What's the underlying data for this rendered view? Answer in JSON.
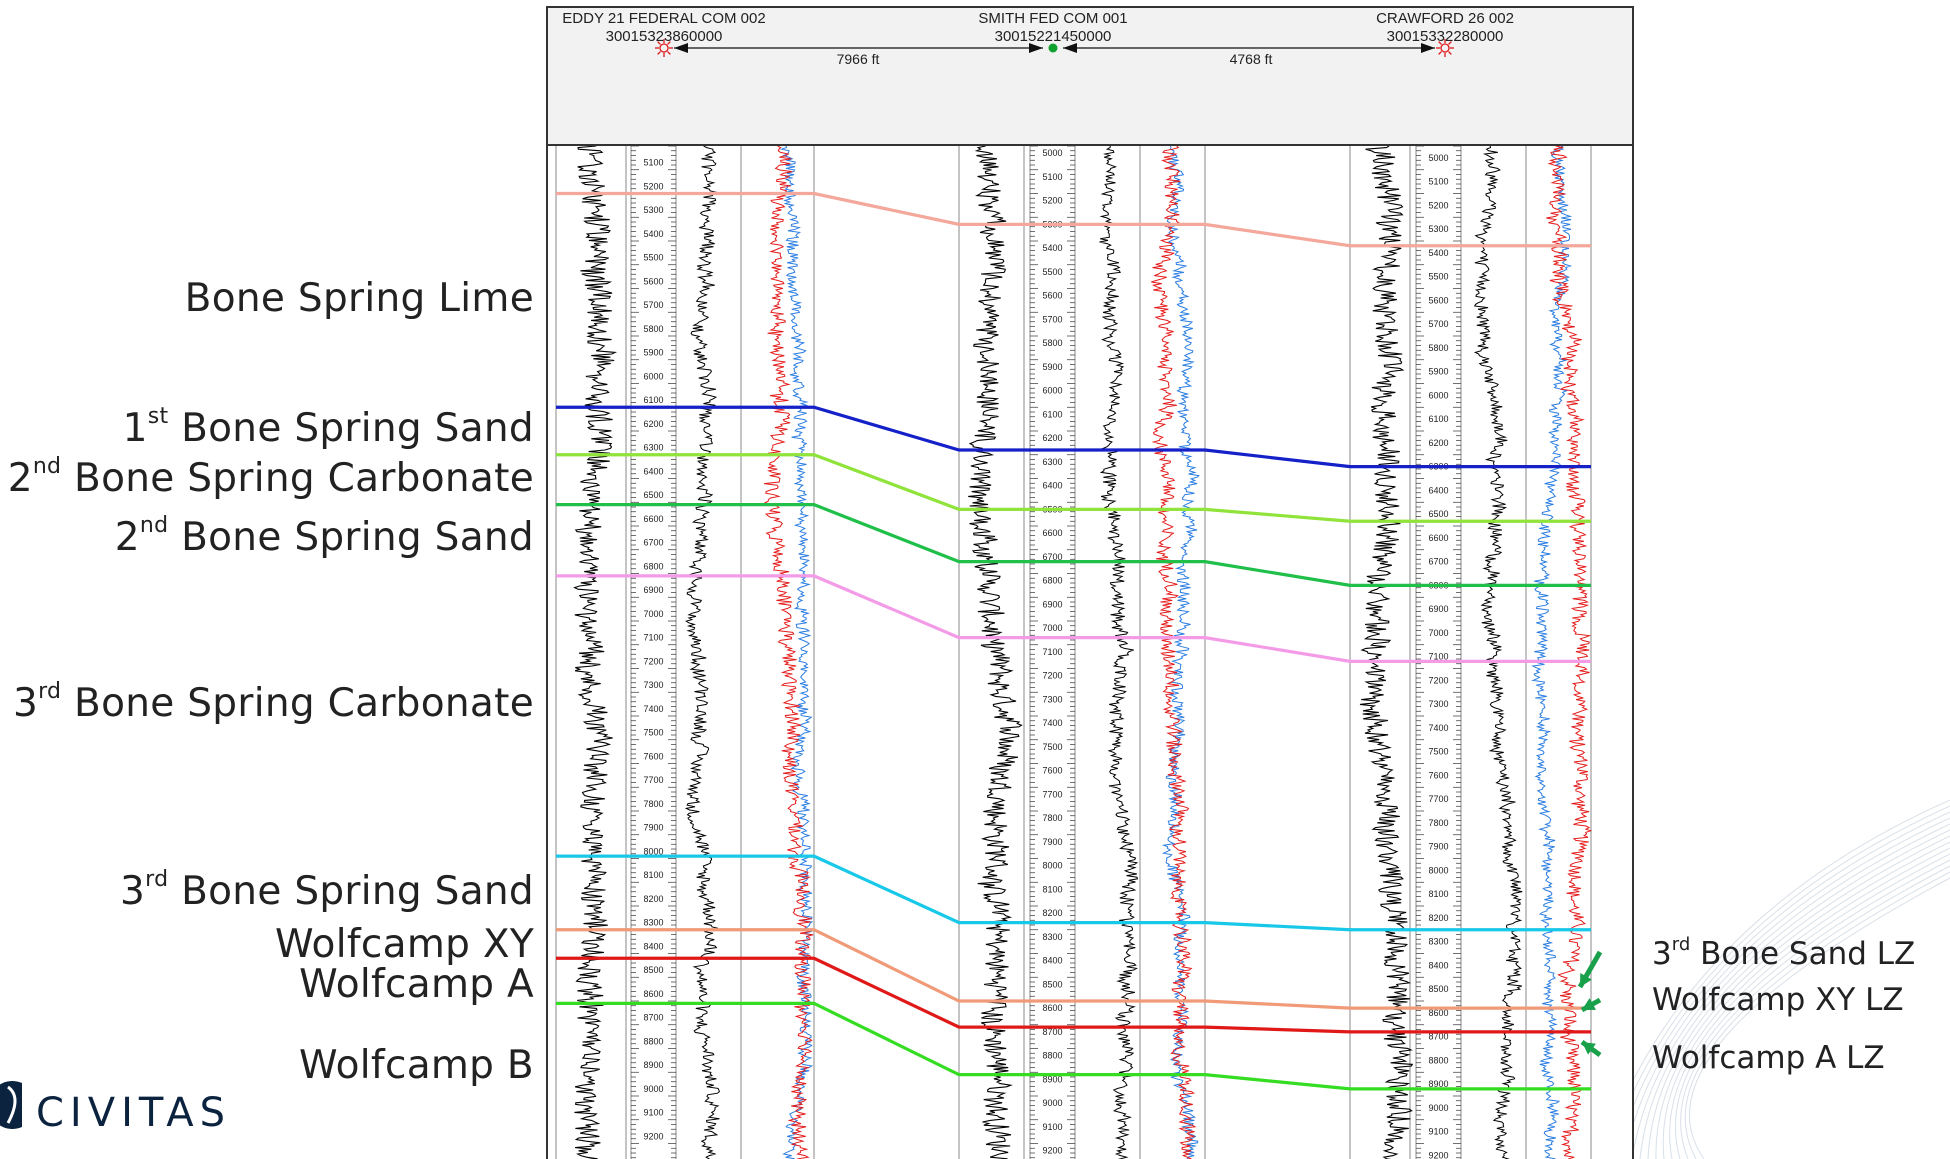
{
  "wells": [
    {
      "name": "EDDY 21 FEDERAL COM 002",
      "api": "30015323860000",
      "symbol": "red-sun-icon",
      "top_depth": 5030,
      "depths": [
        "5100",
        "5200",
        "5300",
        "5400",
        "5500",
        "5600",
        "5700",
        "5800",
        "5900",
        "6000",
        "6100",
        "6200",
        "6300",
        "6400",
        "6500",
        "6600",
        "6700",
        "6800",
        "6900",
        "7000",
        "7100",
        "7200",
        "7300",
        "7400",
        "7500",
        "7600",
        "7700",
        "7800",
        "7900",
        "8000",
        "8100",
        "8200",
        "8300",
        "8400",
        "8500",
        "8600",
        "8700",
        "8800",
        "8900",
        "9000",
        "9100",
        "9200"
      ]
    },
    {
      "name": "SMITH FED COM 001",
      "api": "30015221450000",
      "symbol": "green-dot-icon",
      "top_depth": 4970,
      "depths": [
        "5000",
        "5100",
        "5200",
        "5300",
        "5400",
        "5500",
        "5600",
        "5700",
        "5800",
        "5900",
        "6000",
        "6100",
        "6200",
        "6300",
        "6400",
        "6500",
        "6600",
        "6700",
        "6800",
        "6900",
        "7000",
        "7100",
        "7200",
        "7300",
        "7400",
        "7500",
        "7600",
        "7700",
        "7800",
        "7900",
        "8000",
        "8100",
        "8200",
        "8300",
        "8400",
        "8500",
        "8600",
        "8700",
        "8800",
        "8900",
        "9000",
        "9100",
        "9200"
      ]
    },
    {
      "name": "CRAWFORD 26 002",
      "api": "30015332280000",
      "symbol": "red-sun-icon",
      "top_depth": 4950,
      "depths": [
        "5000",
        "5100",
        "5200",
        "5300",
        "5400",
        "5500",
        "5600",
        "5700",
        "5800",
        "5900",
        "6000",
        "6100",
        "6200",
        "6300",
        "6400",
        "6500",
        "6600",
        "6700",
        "6800",
        "6900",
        "7000",
        "7100",
        "7200",
        "7300",
        "7400",
        "7500",
        "7600",
        "7700",
        "7800",
        "7900",
        "8000",
        "8100",
        "8200",
        "8300",
        "8400",
        "8500",
        "8600",
        "8700",
        "8800",
        "8900",
        "9000",
        "9100",
        "9200"
      ]
    }
  ],
  "spacings": [
    "7966 ft",
    "4768 ft"
  ],
  "formations": [
    {
      "label": "Bone Spring Lime",
      "sup": "",
      "rest": "",
      "color": "#f4a79b",
      "depths": [
        5230,
        5300,
        5370
      ]
    },
    {
      "label": "1",
      "sup": "st",
      "rest": " Bone Spring Sand",
      "color": "#1420c8",
      "depths": [
        6130,
        6250,
        6300
      ]
    },
    {
      "label": "2",
      "sup": "nd",
      "rest": " Bone Spring Carbonate",
      "color": "#8fe33a",
      "depths": [
        6330,
        6500,
        6530
      ]
    },
    {
      "label": "2",
      "sup": "nd",
      "rest": " Bone Spring Sand",
      "color": "#1fbf4a",
      "depths": [
        6540,
        6720,
        6800
      ]
    },
    {
      "label": "",
      "sup": "",
      "rest": "",
      "color": "#f49be8",
      "depths": [
        6840,
        7040,
        7120
      ]
    },
    {
      "label": "3",
      "sup": "rd",
      "rest": " Bone Spring Carbonate",
      "color": "",
      "depths": []
    },
    {
      "label": "3",
      "sup": "rd",
      "rest": " Bone Spring Sand",
      "color": "#18c8e8",
      "depths": [
        8020,
        8240,
        8250
      ]
    },
    {
      "label": "Wolfcamp XY",
      "sup": "",
      "rest": "",
      "color": "#f09a78",
      "depths": [
        8330,
        8570,
        8580
      ]
    },
    {
      "label": "Wolfcamp A",
      "sup": "",
      "rest": "",
      "color": "#e01818",
      "depths": [
        8450,
        8680,
        8680
      ]
    },
    {
      "label": "Wolfcamp B",
      "sup": "",
      "rest": "",
      "color": "#34dd22",
      "depths": [
        8640,
        8880,
        8920
      ]
    }
  ],
  "landing_zones": [
    {
      "num": "3",
      "sup": "rd",
      "rest": " Bone Sand LZ"
    },
    {
      "num": "",
      "sup": "",
      "rest": "Wolfcamp XY LZ"
    },
    {
      "num": "",
      "sup": "",
      "rest": "Wolfcamp A LZ"
    }
  ],
  "logo_text": "CIVITAS",
  "colors": {
    "arrow": "#19a04a",
    "navy": "#0c2340",
    "gamma": "#000000",
    "resistivity_a": "#e41b1b",
    "resistivity_b": "#2a7de1"
  }
}
